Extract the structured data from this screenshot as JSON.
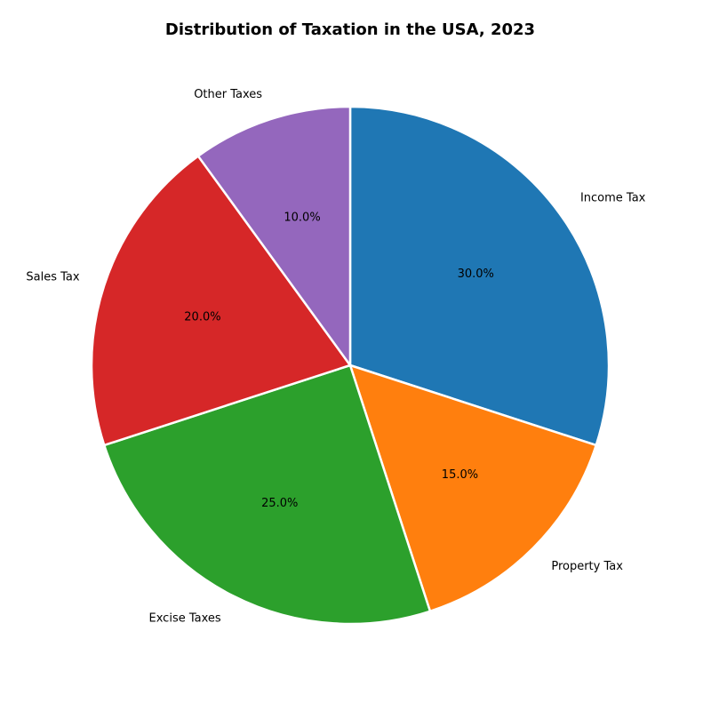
{
  "chart_data": {
    "type": "pie",
    "title": "Distribution of Taxation in the USA, 2023",
    "start_angle_deg": 90,
    "direction": "clockwise",
    "slices": [
      {
        "label": "Income Tax",
        "value": 30.0,
        "pct_label": "30.0%",
        "color": "#1f77b4"
      },
      {
        "label": "Property Tax",
        "value": 15.0,
        "pct_label": "15.0%",
        "color": "#ff7f0e"
      },
      {
        "label": "Excise Taxes",
        "value": 25.0,
        "pct_label": "25.0%",
        "color": "#2ca02c"
      },
      {
        "label": "Sales Tax",
        "value": 20.0,
        "pct_label": "20.0%",
        "color": "#d62728"
      },
      {
        "label": "Other Taxes",
        "value": 10.0,
        "pct_label": "10.0%",
        "color": "#9467bd"
      }
    ]
  }
}
